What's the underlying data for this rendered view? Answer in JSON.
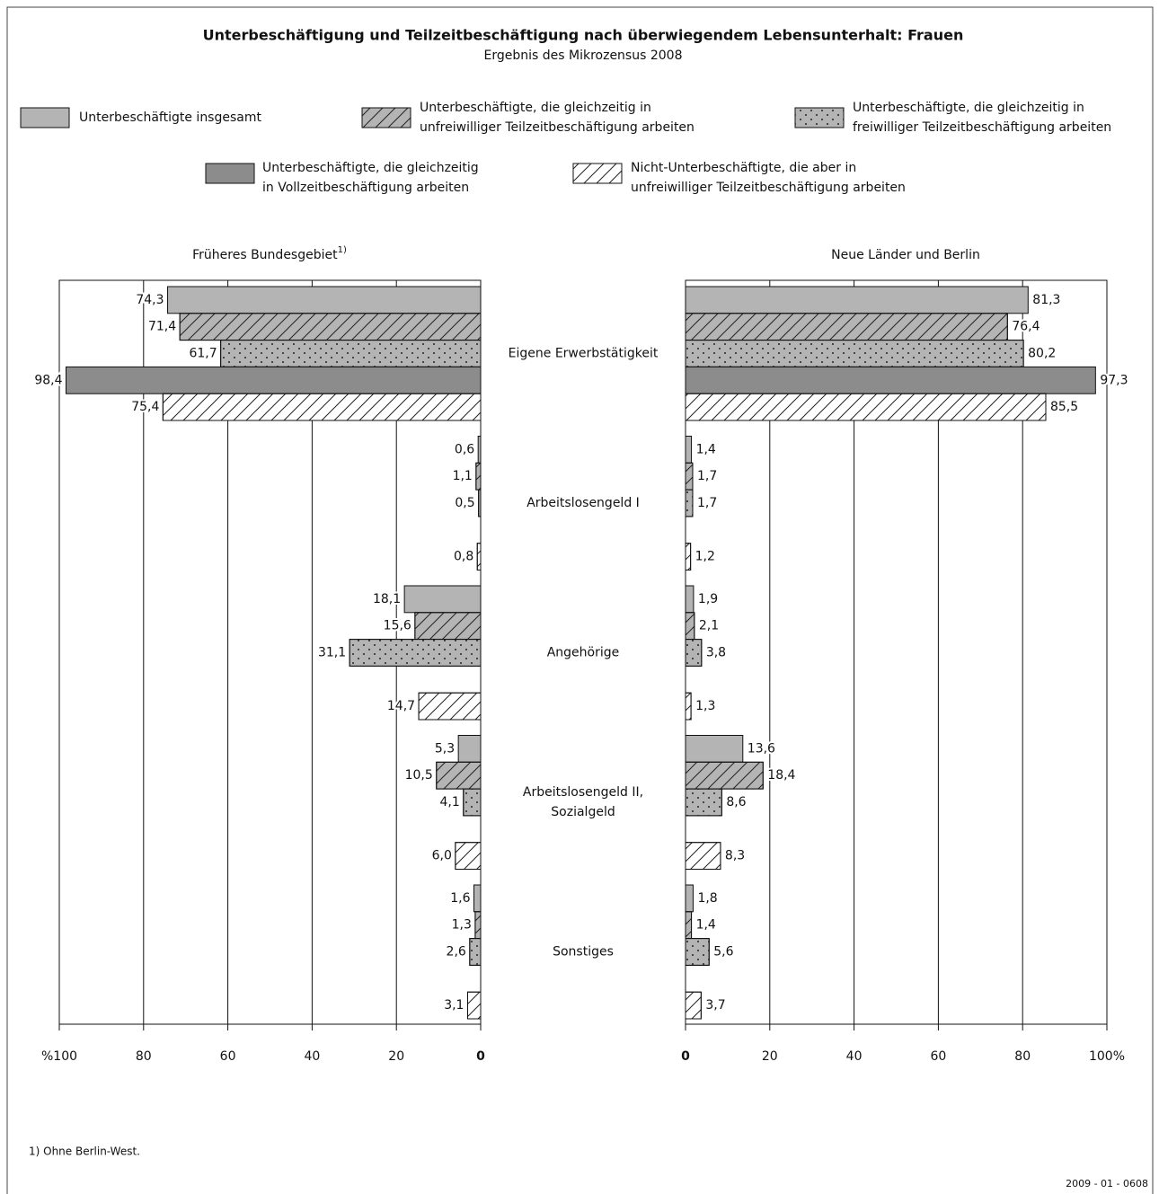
{
  "chart_data": [
    {
      "type": "bar",
      "orientation": "horizontal",
      "title": "Unterbeschäftigung und Teilzeitbeschäftigung nach überwiegendem Lebensunterhalt: Frauen",
      "subtitle": "Ergebnis des Mikrozensus 2008",
      "panel_title": "Früheres Bundesgebiet",
      "panel_title_note": "1)",
      "categories": [
        "Eigene Erwerbstätigkeit",
        "Arbeitslosengeld I",
        "Angehörige",
        "Arbeitslosengeld II,\nSozialgeld",
        "Sonstiges"
      ],
      "xlim": [
        100,
        0
      ],
      "xticks": [
        {
          "value": 100,
          "label": "%100"
        },
        80,
        60,
        40,
        20,
        0
      ],
      "grid": true,
      "series": [
        {
          "name": "Unterbeschäftigte insgesamt",
          "color": "#b4b4b4",
          "pattern": "solid",
          "values": [
            74.3,
            0.6,
            18.1,
            5.3,
            1.6
          ],
          "value_labels": [
            "74,3",
            "0,6",
            "18,1",
            "5,3",
            "1,6"
          ]
        },
        {
          "name": "Unterbeschäftigte, die gleichzeitig in\nunfreiwilliger Teilzeitbeschäftigung arbeiten",
          "color": "#b4b4b4",
          "pattern": "hatch",
          "values": [
            71.4,
            1.1,
            15.6,
            10.5,
            1.3
          ],
          "value_labels": [
            "71,4",
            "1,1",
            "15,6",
            "10,5",
            "1,3"
          ]
        },
        {
          "name": "Unterbeschäftigte, die gleichzeitig in\nfreiwilliger Teilzeitbeschäftigung arbeiten",
          "color": "#b4b4b4",
          "pattern": "dots",
          "values": [
            61.7,
            0.5,
            31.1,
            4.1,
            2.6
          ],
          "value_labels": [
            "61,7",
            "0,5",
            "31,1",
            "4,1",
            "2,6"
          ]
        },
        {
          "name": "Unterbeschäftigte, die gleichzeitig\nin Vollzeitbeschäftigung  arbeiten",
          "color": "#8c8c8c",
          "pattern": "solid",
          "values": [
            98.4,
            null,
            null,
            null,
            null
          ],
          "value_labels": [
            "98,4",
            null,
            null,
            null,
            null
          ]
        },
        {
          "name": "Nicht-Unterbeschäftigte, die aber  in\nunfreiwilliger Teilzeitbeschäftigung arbeiten",
          "color": "#ffffff",
          "pattern": "hatch",
          "values": [
            75.4,
            0.8,
            14.7,
            6.0,
            3.1
          ],
          "value_labels": [
            "75,4",
            "0,8",
            "14,7",
            "6,0",
            "3,1"
          ]
        }
      ]
    },
    {
      "type": "bar",
      "orientation": "horizontal",
      "panel_title": "Neue Länder und Berlin",
      "xlim": [
        0,
        100
      ],
      "xticks": [
        0,
        20,
        40,
        60,
        80,
        {
          "value": 100,
          "label": "100%"
        }
      ],
      "grid": true,
      "series": [
        {
          "color": "#b4b4b4",
          "pattern": "solid",
          "values": [
            81.3,
            1.4,
            1.9,
            13.6,
            1.8
          ],
          "value_labels": [
            "81,3",
            "1,4",
            "1,9",
            "13,6",
            "1,8"
          ]
        },
        {
          "color": "#b4b4b4",
          "pattern": "hatch",
          "values": [
            76.4,
            1.7,
            2.1,
            18.4,
            1.4
          ],
          "value_labels": [
            "76,4",
            "1,7",
            "2,1",
            "18,4",
            "1,4"
          ]
        },
        {
          "color": "#b4b4b4",
          "pattern": "dots",
          "values": [
            80.2,
            1.7,
            3.8,
            8.6,
            5.6
          ],
          "value_labels": [
            "80,2",
            "1,7",
            "3,8",
            "8,6",
            "5,6"
          ]
        },
        {
          "color": "#8c8c8c",
          "pattern": "solid",
          "values": [
            97.3,
            null,
            null,
            null,
            null
          ],
          "value_labels": [
            "97,3",
            null,
            null,
            null,
            null
          ]
        },
        {
          "color": "#ffffff",
          "pattern": "hatch",
          "values": [
            85.5,
            1.2,
            1.3,
            8.3,
            3.7
          ],
          "value_labels": [
            "85,5",
            "1,2",
            "1,3",
            "8,3",
            "3,7"
          ]
        }
      ]
    }
  ],
  "footnote": "1) Ohne Berlin-West.",
  "code": "2009 - 01 - 0608"
}
